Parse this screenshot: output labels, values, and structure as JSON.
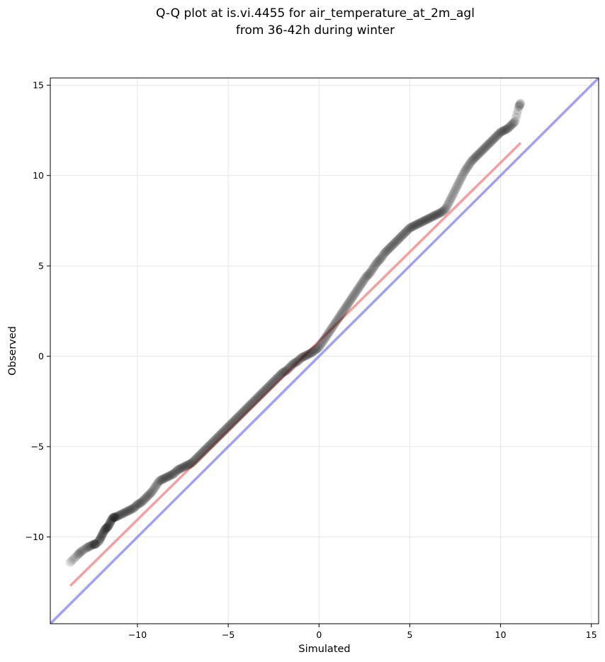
{
  "chart_data": {
    "type": "scatter",
    "title": "Q-Q plot at is.vi.4455 for air_temperature_at_2m_agl",
    "subtitle": "from 36-42h during winter",
    "xlabel": "Simulated",
    "ylabel": "Observed",
    "xlim": [
      -14.8,
      15.4
    ],
    "ylim": [
      -14.8,
      15.4
    ],
    "xticks": [
      -10,
      -5,
      0,
      5,
      10,
      15
    ],
    "yticks": [
      -10,
      -5,
      0,
      5,
      10,
      15
    ],
    "tick_labels": [
      "−10",
      "−5",
      "0",
      "5",
      "10",
      "15"
    ],
    "grid": true,
    "colors": {
      "points": "#000000",
      "fit_line": "#f08080",
      "identity_line": "#8080f0",
      "grid": "#e6e6e6"
    },
    "series": [
      {
        "type": "scatter",
        "x": [
          -13.7,
          -13.3,
          -13.1,
          -12.8,
          -12.6,
          -12.4,
          -12.3,
          -12.1,
          -12.0,
          -11.9,
          -11.8,
          -11.7,
          -11.6,
          -11.5,
          -11.4,
          -11.3,
          -11.2,
          -11.0,
          -10.8,
          -10.6,
          -10.4,
          -10.2,
          -10.0,
          -9.8,
          -9.6,
          -9.4,
          -9.2,
          -9.0,
          -8.8,
          -8.6,
          -8.4,
          -8.2,
          -8.0,
          -7.8,
          -7.6,
          -7.4,
          -7.2,
          -7.0,
          -6.8,
          -6.6,
          -6.4,
          -6.2,
          -6.0,
          -5.8,
          -5.6,
          -5.4,
          -5.2,
          -5.0,
          -4.8,
          -4.6,
          -4.4,
          -4.2,
          -4.0,
          -3.8,
          -3.6,
          -3.4,
          -3.2,
          -3.0,
          -2.8,
          -2.6,
          -2.4,
          -2.2,
          -2.0,
          -1.8,
          -1.6,
          -1.4,
          -1.2,
          -1.0,
          -0.8,
          -0.6,
          -0.4,
          -0.2,
          0.0,
          0.2,
          0.4,
          0.6,
          0.8,
          1.0,
          1.2,
          1.4,
          1.6,
          1.8,
          2.0,
          2.2,
          2.4,
          2.6,
          2.8,
          3.0,
          3.2,
          3.4,
          3.6,
          3.8,
          4.0,
          4.2,
          4.4,
          4.6,
          4.8,
          5.0,
          5.2,
          5.4,
          5.6,
          5.8,
          6.0,
          6.2,
          6.4,
          6.6,
          6.8,
          7.0,
          7.2,
          7.4,
          7.6,
          7.8,
          8.0,
          8.2,
          8.4,
          8.6,
          8.8,
          9.0,
          9.2,
          9.4,
          9.6,
          9.8,
          10.0,
          10.2,
          10.4,
          10.6,
          10.8,
          11.0,
          11.1
        ],
        "y": [
          -11.4,
          -11.0,
          -10.8,
          -10.6,
          -10.5,
          -10.4,
          -10.4,
          -10.2,
          -10.0,
          -9.8,
          -9.6,
          -9.5,
          -9.4,
          -9.2,
          -9.0,
          -8.9,
          -8.9,
          -8.8,
          -8.7,
          -8.6,
          -8.5,
          -8.4,
          -8.2,
          -8.1,
          -7.9,
          -7.7,
          -7.5,
          -7.2,
          -6.9,
          -6.8,
          -6.7,
          -6.6,
          -6.5,
          -6.3,
          -6.2,
          -6.1,
          -6.0,
          -5.9,
          -5.7,
          -5.5,
          -5.3,
          -5.1,
          -4.9,
          -4.7,
          -4.5,
          -4.3,
          -4.1,
          -3.9,
          -3.7,
          -3.5,
          -3.3,
          -3.1,
          -2.9,
          -2.7,
          -2.5,
          -2.3,
          -2.1,
          -1.9,
          -1.7,
          -1.5,
          -1.3,
          -1.1,
          -0.9,
          -0.8,
          -0.6,
          -0.4,
          -0.3,
          -0.1,
          0.0,
          0.1,
          0.2,
          0.35,
          0.5,
          0.8,
          1.1,
          1.4,
          1.7,
          2.0,
          2.3,
          2.6,
          2.9,
          3.2,
          3.5,
          3.8,
          4.1,
          4.4,
          4.6,
          4.9,
          5.2,
          5.4,
          5.7,
          5.9,
          6.1,
          6.3,
          6.5,
          6.7,
          6.9,
          7.1,
          7.2,
          7.3,
          7.4,
          7.5,
          7.6,
          7.7,
          7.8,
          7.9,
          8.0,
          8.2,
          8.6,
          9.0,
          9.4,
          9.8,
          10.2,
          10.5,
          10.8,
          11.0,
          11.2,
          11.4,
          11.6,
          11.8,
          12.0,
          12.2,
          12.4,
          12.5,
          12.6,
          12.8,
          13.0,
          13.8,
          14.0
        ]
      },
      {
        "type": "line",
        "name": "fit",
        "x": [
          -13.7,
          11.1
        ],
        "y": [
          -12.7,
          11.8
        ]
      },
      {
        "type": "line",
        "name": "identity",
        "x": [
          -14.8,
          15.4
        ],
        "y": [
          -14.8,
          15.4
        ]
      }
    ]
  }
}
